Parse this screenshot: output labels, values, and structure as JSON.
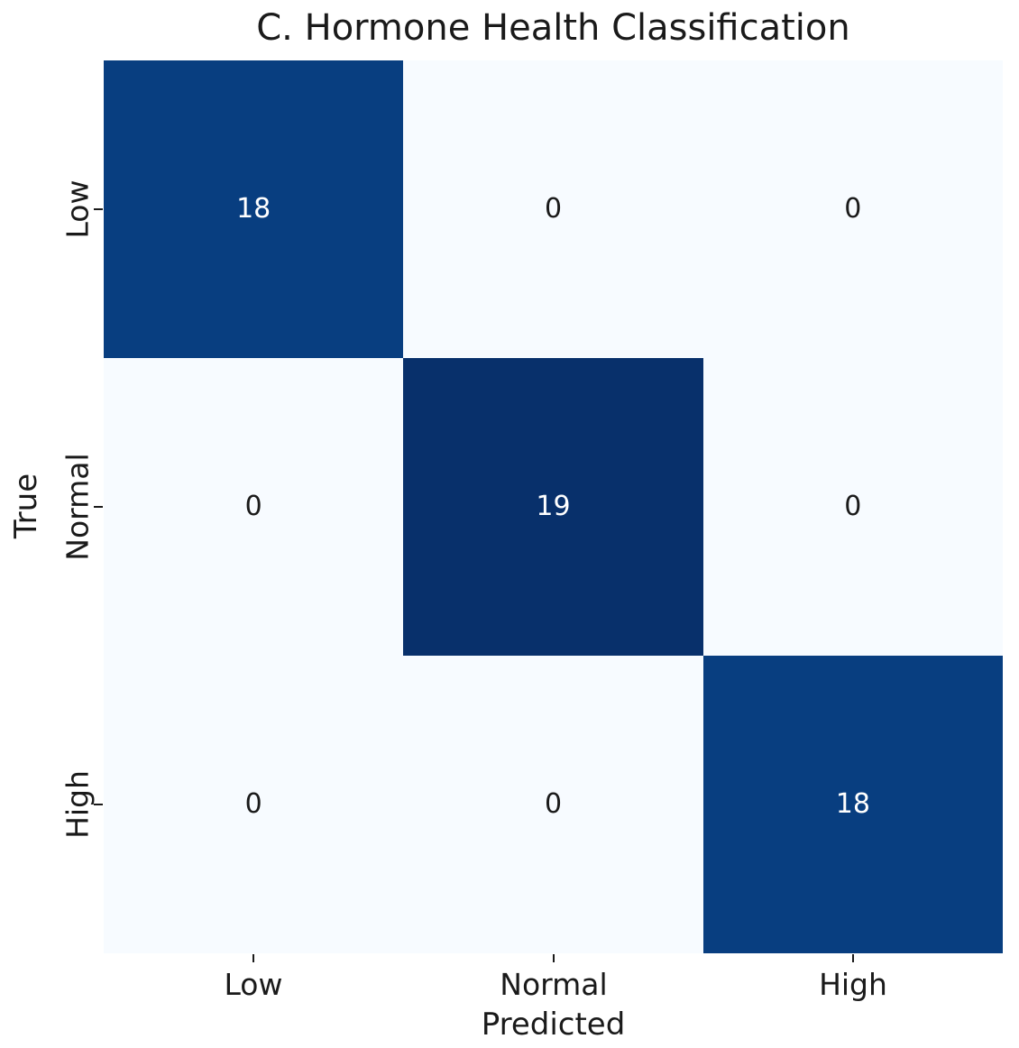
{
  "chart_data": {
    "type": "heatmap",
    "title": "C. Hormone Health Classification",
    "xlabel": "Predicted",
    "ylabel": "True",
    "x_tick_labels": [
      "Low",
      "Normal",
      "High"
    ],
    "y_tick_labels": [
      "Low",
      "Normal",
      "High"
    ],
    "matrix": [
      [
        18,
        0,
        0
      ],
      [
        0,
        19,
        0
      ],
      [
        0,
        0,
        18
      ]
    ],
    "vmin": 0,
    "vmax": 19,
    "colormap": "Blues",
    "grid": false,
    "legend_position": "none",
    "cell_colors": [
      [
        "#083e80",
        "#f7fbff",
        "#f7fbff"
      ],
      [
        "#f7fbff",
        "#08306b",
        "#f7fbff"
      ],
      [
        "#f7fbff",
        "#f7fbff",
        "#083e80"
      ]
    ],
    "colors": {
      "annot_on_dark": "#ffffff",
      "annot_on_light": "#1a1a1a",
      "axis_text": "#1a1a1a",
      "background": "#ffffff"
    }
  }
}
